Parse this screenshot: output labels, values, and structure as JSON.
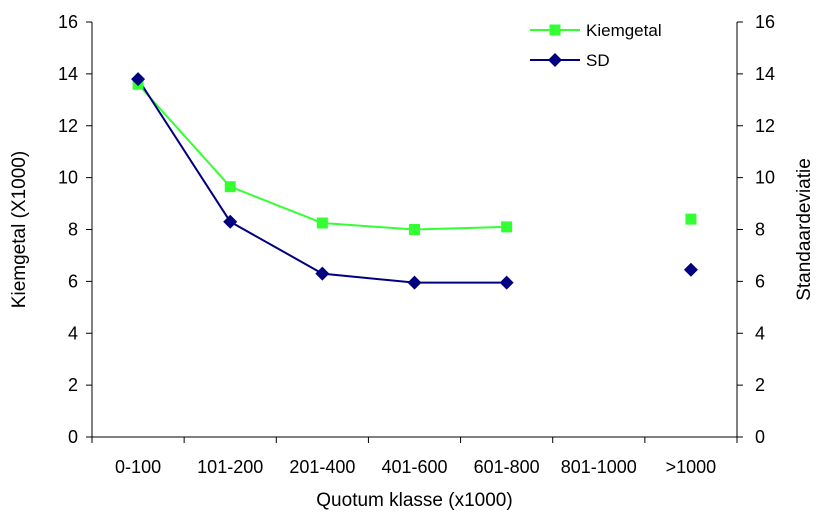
{
  "chart_data": {
    "type": "line",
    "categories": [
      "0-100",
      "101-200",
      "201-400",
      "401-600",
      "601-800",
      "801-1000",
      ">1000"
    ],
    "series": [
      {
        "name": "Kiemgetal",
        "axis": "left",
        "color": "#33ff33",
        "marker": "square",
        "values": [
          13.6,
          9.65,
          8.25,
          8.0,
          8.1,
          null,
          8.4
        ]
      },
      {
        "name": "SD",
        "axis": "right",
        "color": "#000080",
        "marker": "diamond",
        "values": [
          13.8,
          8.3,
          6.3,
          5.95,
          5.95,
          null,
          6.45
        ]
      }
    ],
    "xlabel": "Quotum klasse (x1000)",
    "ylabel": "Kiemgetal (X1000)",
    "y2label": "Standaardeviatie",
    "ylim": [
      0,
      16
    ],
    "y2lim": [
      0,
      16
    ],
    "yticks": [
      0,
      2,
      4,
      6,
      8,
      10,
      12,
      14,
      16
    ],
    "y2ticks": [
      0,
      2,
      4,
      6,
      8,
      10,
      12,
      14,
      16
    ],
    "grid": false,
    "legend_position": "top-right"
  }
}
